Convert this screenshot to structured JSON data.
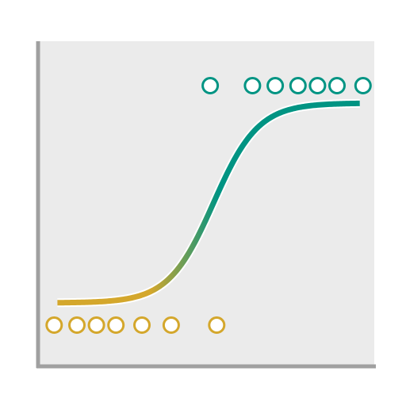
{
  "chart_data": {
    "type": "scatter",
    "title": "",
    "xlabel": "",
    "ylabel": "",
    "xlim": [
      0,
      100
    ],
    "ylim": [
      -0.1,
      1.1
    ],
    "grid": false,
    "legend": "none",
    "series": [
      {
        "values_x": [
          3,
          10,
          16,
          22,
          30,
          39,
          53
        ],
        "values_y": [
          0,
          0,
          0,
          0,
          0,
          0,
          0
        ],
        "color": "#D4A72C"
      },
      {
        "values_x": [
          51,
          64,
          71,
          78,
          84,
          90,
          98
        ],
        "values_y": [
          1,
          1,
          1,
          1,
          1,
          1,
          1
        ],
        "color": "#009483"
      }
    ],
    "fit_curve": {
      "model": "logistic",
      "midpoint": 52,
      "slope": 0.145,
      "x_range": [
        4,
        97
      ],
      "color_low": "#D4A72C",
      "color_high": "#009483"
    },
    "colors": {
      "panel": "#EBEBEB",
      "axis": "#A0A0A0"
    }
  }
}
